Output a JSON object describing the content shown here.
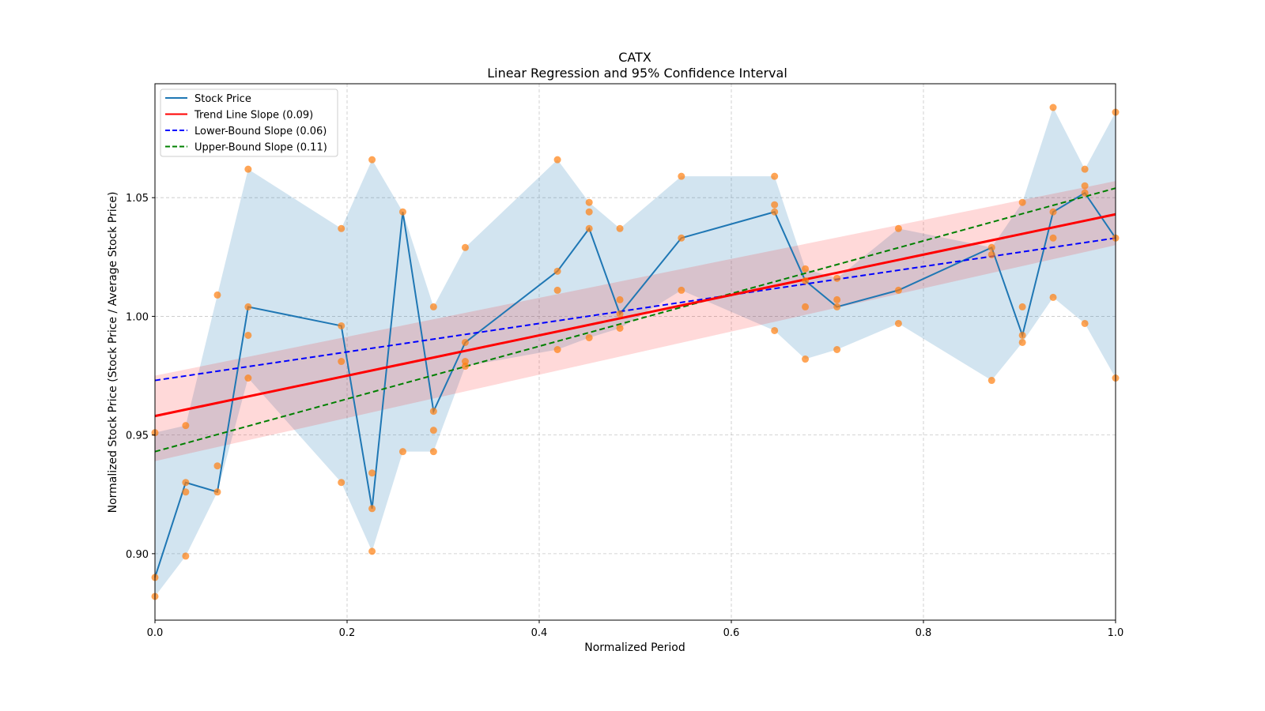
{
  "chart_data": {
    "type": "line",
    "title": "CATX",
    "subtitle": "Linear Regression and 95% Confidence Interval",
    "xlabel": "Normalized Period",
    "ylabel": "Normalized Stock Price (Stock Price / Average Stock Price)",
    "xlim": [
      0.0,
      1.0
    ],
    "ylim": [
      0.872,
      1.098
    ],
    "xticks": [
      0.0,
      0.2,
      0.4,
      0.6,
      0.8,
      1.0
    ],
    "xtick_labels": [
      "0.0",
      "0.2",
      "0.4",
      "0.6",
      "0.8",
      "1.0"
    ],
    "yticks": [
      0.9,
      0.95,
      1.0,
      1.05
    ],
    "ytick_labels": [
      "0.90",
      "0.95",
      "1.00",
      "1.05"
    ],
    "grid": true,
    "legend_position": "top-left",
    "legend": [
      {
        "label": "Stock Price",
        "color": "#1f77b4",
        "style": "solid"
      },
      {
        "label": "Trend Line Slope (0.09)",
        "color": "#ff0000",
        "style": "solid"
      },
      {
        "label": "Lower-Bound Slope (0.06)",
        "color": "#0000ff",
        "style": "dashed"
      },
      {
        "label": "Upper-Bound Slope (0.11)",
        "color": "#008000",
        "style": "dashed"
      }
    ],
    "colors": {
      "stock_line": "#1f77b4",
      "band_fill": "#1f77b4",
      "scatter": "#ff7f0e",
      "trend": "#ff0000",
      "lower": "#0000ff",
      "upper": "#008000",
      "ci_fill": "#ff0000"
    },
    "x": [
      0.0,
      0.032,
      0.065,
      0.097,
      0.194,
      0.226,
      0.258,
      0.29,
      0.323,
      0.419,
      0.452,
      0.484,
      0.548,
      0.645,
      0.677,
      0.71,
      0.774,
      0.871,
      0.903,
      0.935,
      0.968,
      1.0
    ],
    "series": [
      {
        "name": "Stock Price",
        "values": [
          0.89,
          0.93,
          0.926,
          1.004,
          0.996,
          0.919,
          1.044,
          0.96,
          0.989,
          1.019,
          1.037,
          1.001,
          1.033,
          1.044,
          1.015,
          1.004,
          1.011,
          1.029,
          0.992,
          1.044,
          1.052,
          1.033
        ]
      }
    ],
    "range_band": {
      "name": "High-Low Range",
      "high": [
        0.951,
        0.954,
        1.009,
        1.062,
        1.037,
        1.066,
        1.044,
        1.004,
        1.029,
        1.066,
        1.048,
        1.037,
        1.059,
        1.059,
        1.02,
        1.016,
        1.037,
        1.029,
        1.048,
        1.088,
        1.062,
        1.086
      ],
      "low": [
        0.882,
        0.899,
        0.926,
        0.974,
        0.93,
        0.901,
        0.943,
        0.943,
        0.979,
        0.986,
        0.991,
        0.995,
        1.011,
        0.994,
        0.982,
        0.986,
        0.997,
        0.973,
        0.989,
        1.008,
        0.997,
        0.974
      ]
    },
    "scatter_points": [
      [
        0.0,
        0.951
      ],
      [
        0.0,
        0.89
      ],
      [
        0.0,
        0.882
      ],
      [
        0.032,
        0.954
      ],
      [
        0.032,
        0.93
      ],
      [
        0.032,
        0.926
      ],
      [
        0.032,
        0.899
      ],
      [
        0.065,
        1.009
      ],
      [
        0.065,
        0.937
      ],
      [
        0.065,
        0.926
      ],
      [
        0.097,
        1.062
      ],
      [
        0.097,
        1.004
      ],
      [
        0.097,
        0.992
      ],
      [
        0.097,
        0.974
      ],
      [
        0.194,
        1.037
      ],
      [
        0.194,
        0.996
      ],
      [
        0.194,
        0.981
      ],
      [
        0.194,
        0.93
      ],
      [
        0.226,
        1.066
      ],
      [
        0.226,
        0.934
      ],
      [
        0.226,
        0.919
      ],
      [
        0.226,
        0.901
      ],
      [
        0.258,
        1.044
      ],
      [
        0.258,
        0.943
      ],
      [
        0.29,
        1.004
      ],
      [
        0.29,
        0.96
      ],
      [
        0.29,
        0.952
      ],
      [
        0.29,
        0.943
      ],
      [
        0.323,
        1.029
      ],
      [
        0.323,
        0.989
      ],
      [
        0.323,
        0.981
      ],
      [
        0.323,
        0.979
      ],
      [
        0.419,
        1.066
      ],
      [
        0.419,
        1.019
      ],
      [
        0.419,
        1.011
      ],
      [
        0.419,
        0.986
      ],
      [
        0.452,
        1.048
      ],
      [
        0.452,
        1.044
      ],
      [
        0.452,
        1.037
      ],
      [
        0.452,
        0.991
      ],
      [
        0.484,
        1.037
      ],
      [
        0.484,
        1.007
      ],
      [
        0.484,
        1.001
      ],
      [
        0.484,
        0.995
      ],
      [
        0.548,
        1.059
      ],
      [
        0.548,
        1.033
      ],
      [
        0.548,
        1.011
      ],
      [
        0.645,
        1.059
      ],
      [
        0.645,
        1.047
      ],
      [
        0.645,
        1.044
      ],
      [
        0.645,
        0.994
      ],
      [
        0.677,
        1.02
      ],
      [
        0.677,
        1.015
      ],
      [
        0.677,
        1.004
      ],
      [
        0.677,
        0.982
      ],
      [
        0.71,
        1.016
      ],
      [
        0.71,
        1.007
      ],
      [
        0.71,
        1.004
      ],
      [
        0.71,
        0.986
      ],
      [
        0.774,
        1.037
      ],
      [
        0.774,
        1.011
      ],
      [
        0.774,
        0.997
      ],
      [
        0.871,
        1.029
      ],
      [
        0.871,
        1.026
      ],
      [
        0.871,
        0.973
      ],
      [
        0.903,
        1.048
      ],
      [
        0.903,
        1.004
      ],
      [
        0.903,
        0.992
      ],
      [
        0.903,
        0.989
      ],
      [
        0.935,
        1.088
      ],
      [
        0.935,
        1.044
      ],
      [
        0.935,
        1.033
      ],
      [
        0.935,
        1.008
      ],
      [
        0.968,
        1.062
      ],
      [
        0.968,
        1.055
      ],
      [
        0.968,
        1.052
      ],
      [
        0.968,
        0.997
      ],
      [
        1.0,
        1.086
      ],
      [
        1.0,
        1.033
      ],
      [
        1.0,
        0.974
      ]
    ],
    "trend_line": {
      "label": "Trend Line Slope (0.09)",
      "slope": 0.09,
      "y_at_0": 0.958,
      "y_at_1": 1.043
    },
    "lower_bound_line": {
      "label": "Lower-Bound Slope (0.06)",
      "slope": 0.06,
      "y_at_0": 0.973,
      "y_at_1": 1.033
    },
    "upper_bound_line": {
      "label": "Upper-Bound Slope (0.11)",
      "slope": 0.11,
      "y_at_0": 0.943,
      "y_at_1": 1.054
    },
    "confidence_interval": {
      "upper_at_0": 0.975,
      "lower_at_0": 0.939,
      "upper_at_1": 1.057,
      "lower_at_1": 1.03
    }
  }
}
